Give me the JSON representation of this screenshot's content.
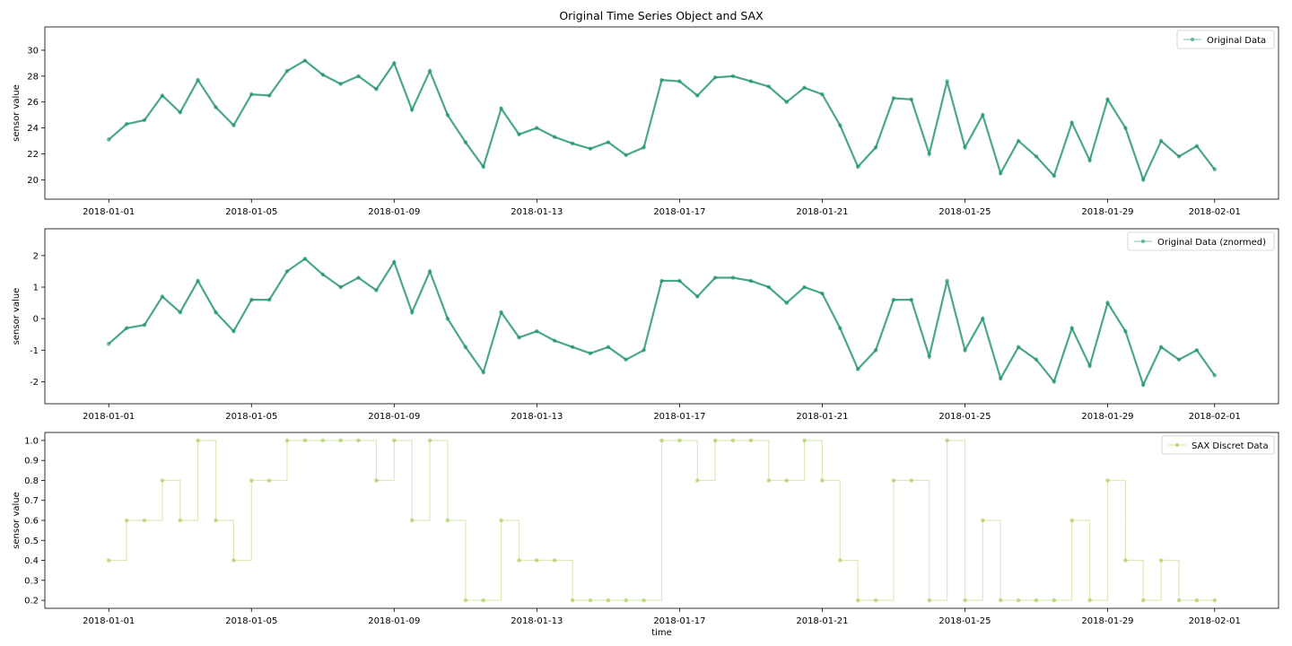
{
  "figure": {
    "title": "Original Time Series Object and SAX"
  },
  "chart_data": [
    {
      "type": "line",
      "title": "Original Time Series Object and SAX",
      "xlabel": "",
      "ylabel": "sensor value",
      "x_ticks": [
        "2018-01-01",
        "2018-01-05",
        "2018-01-09",
        "2018-01-13",
        "2018-01-17",
        "2018-01-21",
        "2018-01-25",
        "2018-01-29",
        "2018-02-01"
      ],
      "xlim": [
        "2017-12-30T05:00",
        "2018-02-02T19:00"
      ],
      "y_ticks": [
        "20",
        "22",
        "24",
        "26",
        "28",
        "30"
      ],
      "ylim": [
        18.5,
        31.8
      ],
      "legend": "top-right",
      "series": [
        {
          "name": "Original Data",
          "color": "#0e8a62",
          "x": [
            "2018-01-01T00:00",
            "2018-01-01T12:00",
            "2018-01-02T00:00",
            "2018-01-02T12:00",
            "2018-01-03T00:00",
            "2018-01-03T12:00",
            "2018-01-04T00:00",
            "2018-01-04T12:00",
            "2018-01-05T00:00",
            "2018-01-05T12:00",
            "2018-01-06T00:00",
            "2018-01-06T12:00",
            "2018-01-07T00:00",
            "2018-01-07T12:00",
            "2018-01-08T00:00",
            "2018-01-08T12:00",
            "2018-01-09T00:00",
            "2018-01-09T12:00",
            "2018-01-10T00:00",
            "2018-01-10T12:00",
            "2018-01-11T00:00",
            "2018-01-11T12:00",
            "2018-01-12T00:00",
            "2018-01-12T12:00",
            "2018-01-13T00:00",
            "2018-01-13T12:00",
            "2018-01-14T00:00",
            "2018-01-14T12:00",
            "2018-01-15T00:00",
            "2018-01-15T12:00",
            "2018-01-16T00:00",
            "2018-01-16T12:00",
            "2018-01-17T00:00",
            "2018-01-17T12:00",
            "2018-01-18T00:00",
            "2018-01-18T12:00",
            "2018-01-19T00:00",
            "2018-01-19T12:00",
            "2018-01-20T00:00",
            "2018-01-20T12:00",
            "2018-01-21T00:00",
            "2018-01-21T12:00",
            "2018-01-22T00:00",
            "2018-01-22T12:00",
            "2018-01-23T00:00",
            "2018-01-23T12:00",
            "2018-01-24T00:00",
            "2018-01-24T12:00",
            "2018-01-25T00:00",
            "2018-01-25T12:00",
            "2018-01-26T00:00",
            "2018-01-26T12:00",
            "2018-01-27T00:00",
            "2018-01-27T12:00",
            "2018-01-28T00:00",
            "2018-01-28T12:00",
            "2018-01-29T00:00",
            "2018-01-29T12:00",
            "2018-01-30T00:00",
            "2018-01-30T12:00",
            "2018-01-31T00:00",
            "2018-01-31T12:00",
            "2018-02-01T00:00"
          ],
          "y": [
            23.1,
            24.3,
            24.6,
            26.5,
            25.2,
            27.7,
            25.6,
            24.2,
            26.6,
            26.5,
            28.4,
            29.2,
            28.1,
            27.4,
            28.0,
            27.0,
            29.0,
            25.4,
            28.4,
            25.0,
            22.9,
            21.0,
            25.5,
            23.5,
            24.0,
            23.3,
            22.8,
            22.4,
            22.9,
            21.9,
            22.5,
            27.7,
            27.6,
            26.5,
            27.9,
            28.0,
            27.6,
            27.2,
            26.0,
            27.1,
            26.6,
            24.2,
            21.0,
            22.5,
            26.3,
            26.2,
            22.0,
            27.6,
            22.5,
            25.0,
            20.5,
            23.0,
            21.8,
            20.3,
            24.4,
            21.5,
            26.2,
            24.0,
            20.0,
            23.0,
            21.8,
            22.6,
            20.8
          ]
        }
      ]
    },
    {
      "type": "line",
      "title": "",
      "xlabel": "",
      "ylabel": "sensor value",
      "x_ticks": [
        "2018-01-01",
        "2018-01-05",
        "2018-01-09",
        "2018-01-13",
        "2018-01-17",
        "2018-01-21",
        "2018-01-25",
        "2018-01-29",
        "2018-02-01"
      ],
      "xlim": [
        "2017-12-30T05:00",
        "2018-02-02T19:00"
      ],
      "y_ticks": [
        "-2",
        "-1",
        "0",
        "1",
        "2"
      ],
      "ylim": [
        -2.7,
        2.85
      ],
      "legend": "top-right",
      "series": [
        {
          "name": "Original Data (znormed)",
          "color": "#0e8a62",
          "x": [
            "2018-01-01T00:00",
            "2018-01-01T12:00",
            "2018-01-02T00:00",
            "2018-01-02T12:00",
            "2018-01-03T00:00",
            "2018-01-03T12:00",
            "2018-01-04T00:00",
            "2018-01-04T12:00",
            "2018-01-05T00:00",
            "2018-01-05T12:00",
            "2018-01-06T00:00",
            "2018-01-06T12:00",
            "2018-01-07T00:00",
            "2018-01-07T12:00",
            "2018-01-08T00:00",
            "2018-01-08T12:00",
            "2018-01-09T00:00",
            "2018-01-09T12:00",
            "2018-01-10T00:00",
            "2018-01-10T12:00",
            "2018-01-11T00:00",
            "2018-01-11T12:00",
            "2018-01-12T00:00",
            "2018-01-12T12:00",
            "2018-01-13T00:00",
            "2018-01-13T12:00",
            "2018-01-14T00:00",
            "2018-01-14T12:00",
            "2018-01-15T00:00",
            "2018-01-15T12:00",
            "2018-01-16T00:00",
            "2018-01-16T12:00",
            "2018-01-17T00:00",
            "2018-01-17T12:00",
            "2018-01-18T00:00",
            "2018-01-18T12:00",
            "2018-01-19T00:00",
            "2018-01-19T12:00",
            "2018-01-20T00:00",
            "2018-01-20T12:00",
            "2018-01-21T00:00",
            "2018-01-21T12:00",
            "2018-01-22T00:00",
            "2018-01-22T12:00",
            "2018-01-23T00:00",
            "2018-01-23T12:00",
            "2018-01-24T00:00",
            "2018-01-24T12:00",
            "2018-01-25T00:00",
            "2018-01-25T12:00",
            "2018-01-26T00:00",
            "2018-01-26T12:00",
            "2018-01-27T00:00",
            "2018-01-27T12:00",
            "2018-01-28T00:00",
            "2018-01-28T12:00",
            "2018-01-29T00:00",
            "2018-01-29T12:00",
            "2018-01-30T00:00",
            "2018-01-30T12:00",
            "2018-01-31T00:00",
            "2018-01-31T12:00",
            "2018-02-01T00:00"
          ],
          "y": [
            -0.8,
            -0.3,
            -0.2,
            0.7,
            0.2,
            1.2,
            0.2,
            -0.4,
            0.6,
            0.6,
            1.5,
            1.9,
            1.4,
            1.0,
            1.3,
            0.9,
            1.8,
            0.2,
            1.5,
            0.0,
            -0.9,
            -1.7,
            0.2,
            -0.6,
            -0.4,
            -0.7,
            -0.9,
            -1.1,
            -0.9,
            -1.3,
            -1.0,
            1.2,
            1.2,
            0.7,
            1.3,
            1.3,
            1.2,
            1.0,
            0.5,
            1.0,
            0.8,
            -0.3,
            -1.6,
            -1.0,
            0.6,
            0.6,
            -1.2,
            1.2,
            -1.0,
            0.0,
            -1.9,
            -0.9,
            -1.3,
            -2.0,
            -0.3,
            -1.5,
            0.5,
            -0.4,
            -2.1,
            -0.9,
            -1.3,
            -1.0,
            -1.8
          ]
        }
      ]
    },
    {
      "type": "line",
      "title": "",
      "xlabel": "time",
      "ylabel": "sensor value",
      "x_ticks": [
        "2018-01-01",
        "2018-01-05",
        "2018-01-09",
        "2018-01-13",
        "2018-01-17",
        "2018-01-21",
        "2018-01-25",
        "2018-01-29",
        "2018-02-01"
      ],
      "xlim": [
        "2017-12-30T05:00",
        "2018-02-02T19:00"
      ],
      "y_ticks": [
        "0.2",
        "0.3",
        "0.4",
        "0.5",
        "0.6",
        "0.7",
        "0.8",
        "0.9",
        "1.0"
      ],
      "ylim": [
        0.16,
        1.04
      ],
      "legend": "top-right",
      "series": [
        {
          "name": "SAX Discret Data",
          "color": "#9bc23c",
          "x": [
            "2018-01-01T00:00",
            "2018-01-01T12:00",
            "2018-01-02T00:00",
            "2018-01-02T12:00",
            "2018-01-03T00:00",
            "2018-01-03T12:00",
            "2018-01-04T00:00",
            "2018-01-04T12:00",
            "2018-01-05T00:00",
            "2018-01-05T12:00",
            "2018-01-06T00:00",
            "2018-01-06T12:00",
            "2018-01-07T00:00",
            "2018-01-07T12:00",
            "2018-01-08T00:00",
            "2018-01-08T12:00",
            "2018-01-09T00:00",
            "2018-01-09T12:00",
            "2018-01-10T00:00",
            "2018-01-10T12:00",
            "2018-01-11T00:00",
            "2018-01-11T12:00",
            "2018-01-12T00:00",
            "2018-01-12T12:00",
            "2018-01-13T00:00",
            "2018-01-13T12:00",
            "2018-01-14T00:00",
            "2018-01-14T12:00",
            "2018-01-15T00:00",
            "2018-01-15T12:00",
            "2018-01-16T00:00",
            "2018-01-16T12:00",
            "2018-01-17T00:00",
            "2018-01-17T12:00",
            "2018-01-18T00:00",
            "2018-01-18T12:00",
            "2018-01-19T00:00",
            "2018-01-19T12:00",
            "2018-01-20T00:00",
            "2018-01-20T12:00",
            "2018-01-21T00:00",
            "2018-01-21T12:00",
            "2018-01-22T00:00",
            "2018-01-22T12:00",
            "2018-01-23T00:00",
            "2018-01-23T12:00",
            "2018-01-24T00:00",
            "2018-01-24T12:00",
            "2018-01-25T00:00",
            "2018-01-25T12:00",
            "2018-01-26T00:00",
            "2018-01-26T12:00",
            "2018-01-27T00:00",
            "2018-01-27T12:00",
            "2018-01-28T00:00",
            "2018-01-28T12:00",
            "2018-01-29T00:00",
            "2018-01-29T12:00",
            "2018-01-30T00:00",
            "2018-01-30T12:00",
            "2018-01-31T00:00",
            "2018-01-31T12:00",
            "2018-02-01T00:00"
          ],
          "y": [
            0.4,
            0.6,
            0.6,
            0.8,
            0.6,
            1.0,
            0.6,
            0.4,
            0.8,
            0.8,
            1.0,
            1.0,
            1.0,
            1.0,
            1.0,
            0.8,
            1.0,
            0.6,
            1.0,
            0.6,
            0.2,
            0.2,
            0.6,
            0.4,
            0.4,
            0.4,
            0.2,
            0.2,
            0.2,
            0.2,
            0.2,
            1.0,
            1.0,
            0.8,
            1.0,
            1.0,
            1.0,
            0.8,
            0.8,
            1.0,
            0.8,
            0.4,
            0.2,
            0.2,
            0.8,
            0.8,
            0.2,
            1.0,
            0.2,
            0.6,
            0.2,
            0.2,
            0.2,
            0.2,
            0.6,
            0.2,
            0.8,
            0.4,
            0.2,
            0.4,
            0.2,
            0.2,
            0.2
          ]
        }
      ]
    }
  ]
}
